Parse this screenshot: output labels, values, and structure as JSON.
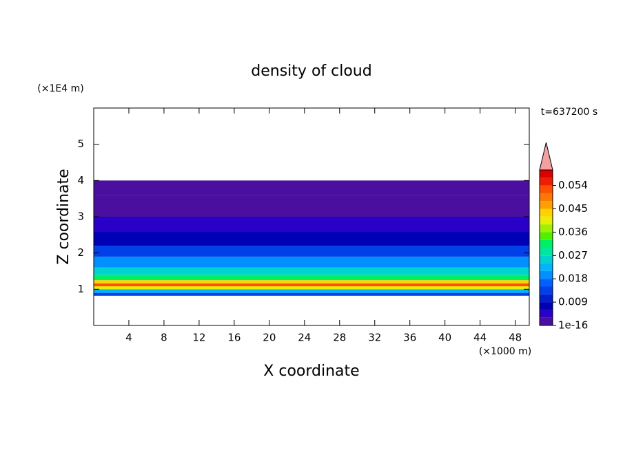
{
  "chart_data": {
    "type": "contour",
    "title": "density of cloud",
    "x_label": "X coordinate",
    "y_label": "Z coordinate",
    "x_unit": "(×1000 m)",
    "y_unit": "(×1E4 m)",
    "time_label": "t=637200 s",
    "xlim": [
      0,
      49.6
    ],
    "ylim": [
      0,
      6
    ],
    "xticks": [
      4,
      8,
      12,
      16,
      20,
      24,
      28,
      32,
      36,
      40,
      44,
      48
    ],
    "yticks": [
      1,
      2,
      3,
      4,
      5
    ],
    "z_edges": [
      0.82,
      0.9,
      1.0,
      1.08,
      1.16,
      1.25,
      1.4,
      1.6,
      1.9,
      2.2,
      2.6,
      3.0,
      3.6,
      4.0
    ],
    "values": [
      0.013,
      0.022,
      0.04,
      0.052,
      0.042,
      0.03,
      0.024,
      0.02,
      0.012,
      0.008,
      0.005,
      0.002,
      0.0015
    ],
    "colorbar": {
      "levels": [
        1e-16,
        0.003,
        0.006,
        0.009,
        0.012,
        0.015,
        0.018,
        0.021,
        0.024,
        0.027,
        0.03,
        0.033,
        0.036,
        0.039,
        0.042,
        0.045,
        0.048,
        0.051,
        0.054,
        0.057,
        0.06
      ],
      "colors": [
        "#4b0fa0",
        "#2a00c8",
        "#0000b4",
        "#0020d0",
        "#0040e8",
        "#0060ff",
        "#0090ff",
        "#00b4ff",
        "#00d2d2",
        "#00e6a0",
        "#00f064",
        "#50f000",
        "#a0f000",
        "#e6f000",
        "#ffd200",
        "#ffa000",
        "#ff7800",
        "#ff5000",
        "#f01e00",
        "#dc0000"
      ],
      "extend_color": "#f5a0a0",
      "ticks": [
        {
          "value": 1e-16,
          "label": "1e-16"
        },
        0.009,
        0.018,
        0.027,
        0.036,
        0.045,
        0.054
      ]
    }
  }
}
